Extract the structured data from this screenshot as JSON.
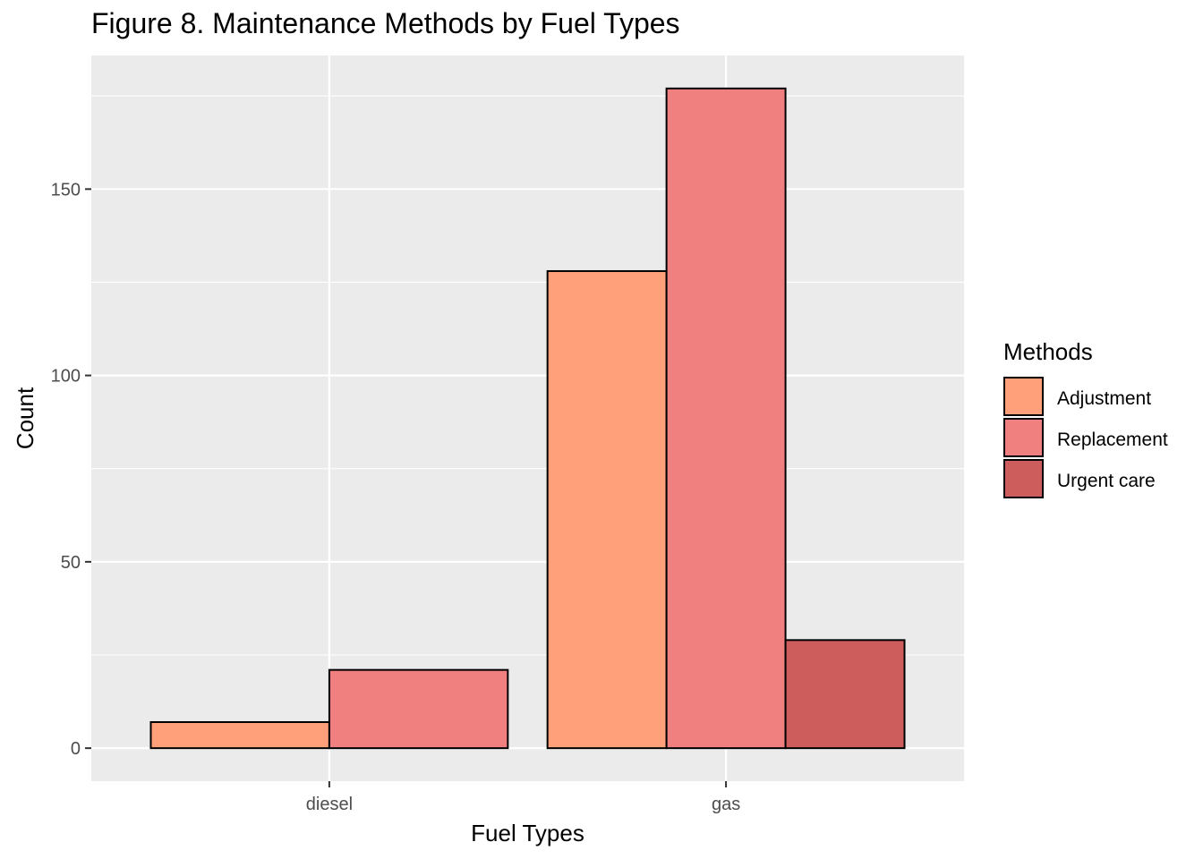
{
  "chart_data": {
    "type": "bar",
    "title": "Figure 8. Maintenance Methods by Fuel Types",
    "xlabel": "Fuel Types",
    "ylabel": "Count",
    "categories": [
      "diesel",
      "gas"
    ],
    "series": [
      {
        "name": "Adjustment",
        "color": "#FFA07A",
        "values": [
          7,
          128
        ]
      },
      {
        "name": "Replacement",
        "color": "#F08080",
        "values": [
          21,
          177
        ]
      },
      {
        "name": "Urgent care",
        "color": "#CD5C5C",
        "values": [
          null,
          29
        ]
      }
    ],
    "yticks": [
      0,
      50,
      100,
      150
    ],
    "ylim": [
      -8.85,
      185.85
    ],
    "grid": true,
    "legend_title": "Methods",
    "legend_position": "right",
    "panel_color": "#EBEBEB",
    "grid_color": "#FFFFFF"
  }
}
